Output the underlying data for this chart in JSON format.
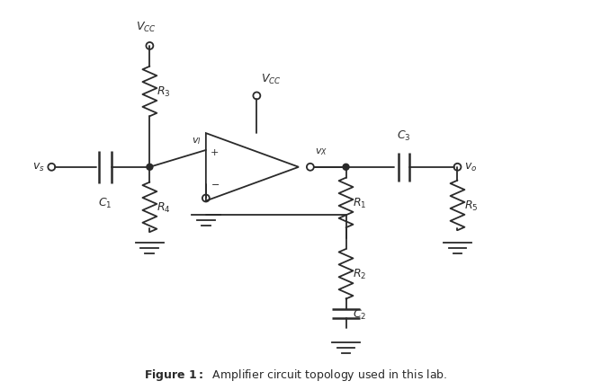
{
  "title_bold": "Figure 1:",
  "title_normal": " Amplifier circuit topology used in this lab.",
  "background_color": "#ffffff",
  "line_color": "#2a2a2a",
  "text_color": "#2a2a2a",
  "fig_width": 6.58,
  "fig_height": 4.35,
  "dpi": 100
}
